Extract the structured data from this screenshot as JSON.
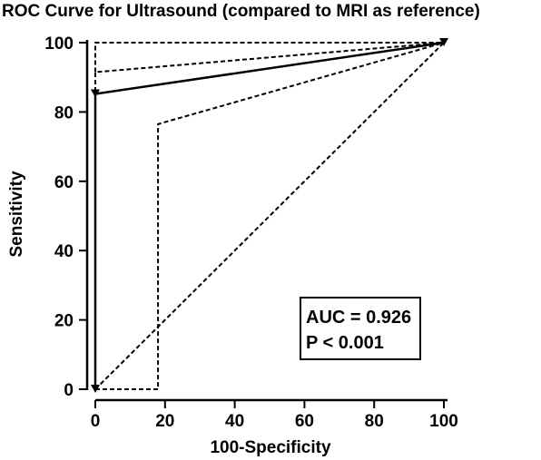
{
  "chart_data": {
    "type": "line",
    "title": "ROC Curve for Ultrasound (compared to MRI as reference)",
    "xlabel": "100-Specificity",
    "ylabel": "Sensitivity",
    "xlim": [
      0,
      100
    ],
    "ylim": [
      0,
      100
    ],
    "xticks": [
      0,
      20,
      40,
      60,
      80,
      100
    ],
    "yticks": [
      0,
      20,
      40,
      60,
      80,
      100
    ],
    "grid": false,
    "series": [
      {
        "style": "solid",
        "x": [
          0,
          0,
          100
        ],
        "y": [
          0,
          85.2,
          100
        ],
        "markers": "triangle-down"
      },
      {
        "style": "dashed",
        "x": [
          0,
          0,
          100
        ],
        "y": [
          0,
          91.5,
          100
        ]
      },
      {
        "style": "dashed",
        "x": [
          0,
          18,
          18,
          100
        ],
        "y": [
          0,
          0,
          76.5,
          100
        ]
      },
      {
        "style": "dashed",
        "x": [
          0,
          100
        ],
        "y": [
          0,
          100
        ]
      },
      {
        "style": "dashed",
        "x": [
          0,
          0,
          100
        ],
        "y": [
          91.5,
          100,
          100
        ]
      }
    ],
    "annotations": [
      "AUC = 0.926",
      "P < 0.001"
    ]
  }
}
